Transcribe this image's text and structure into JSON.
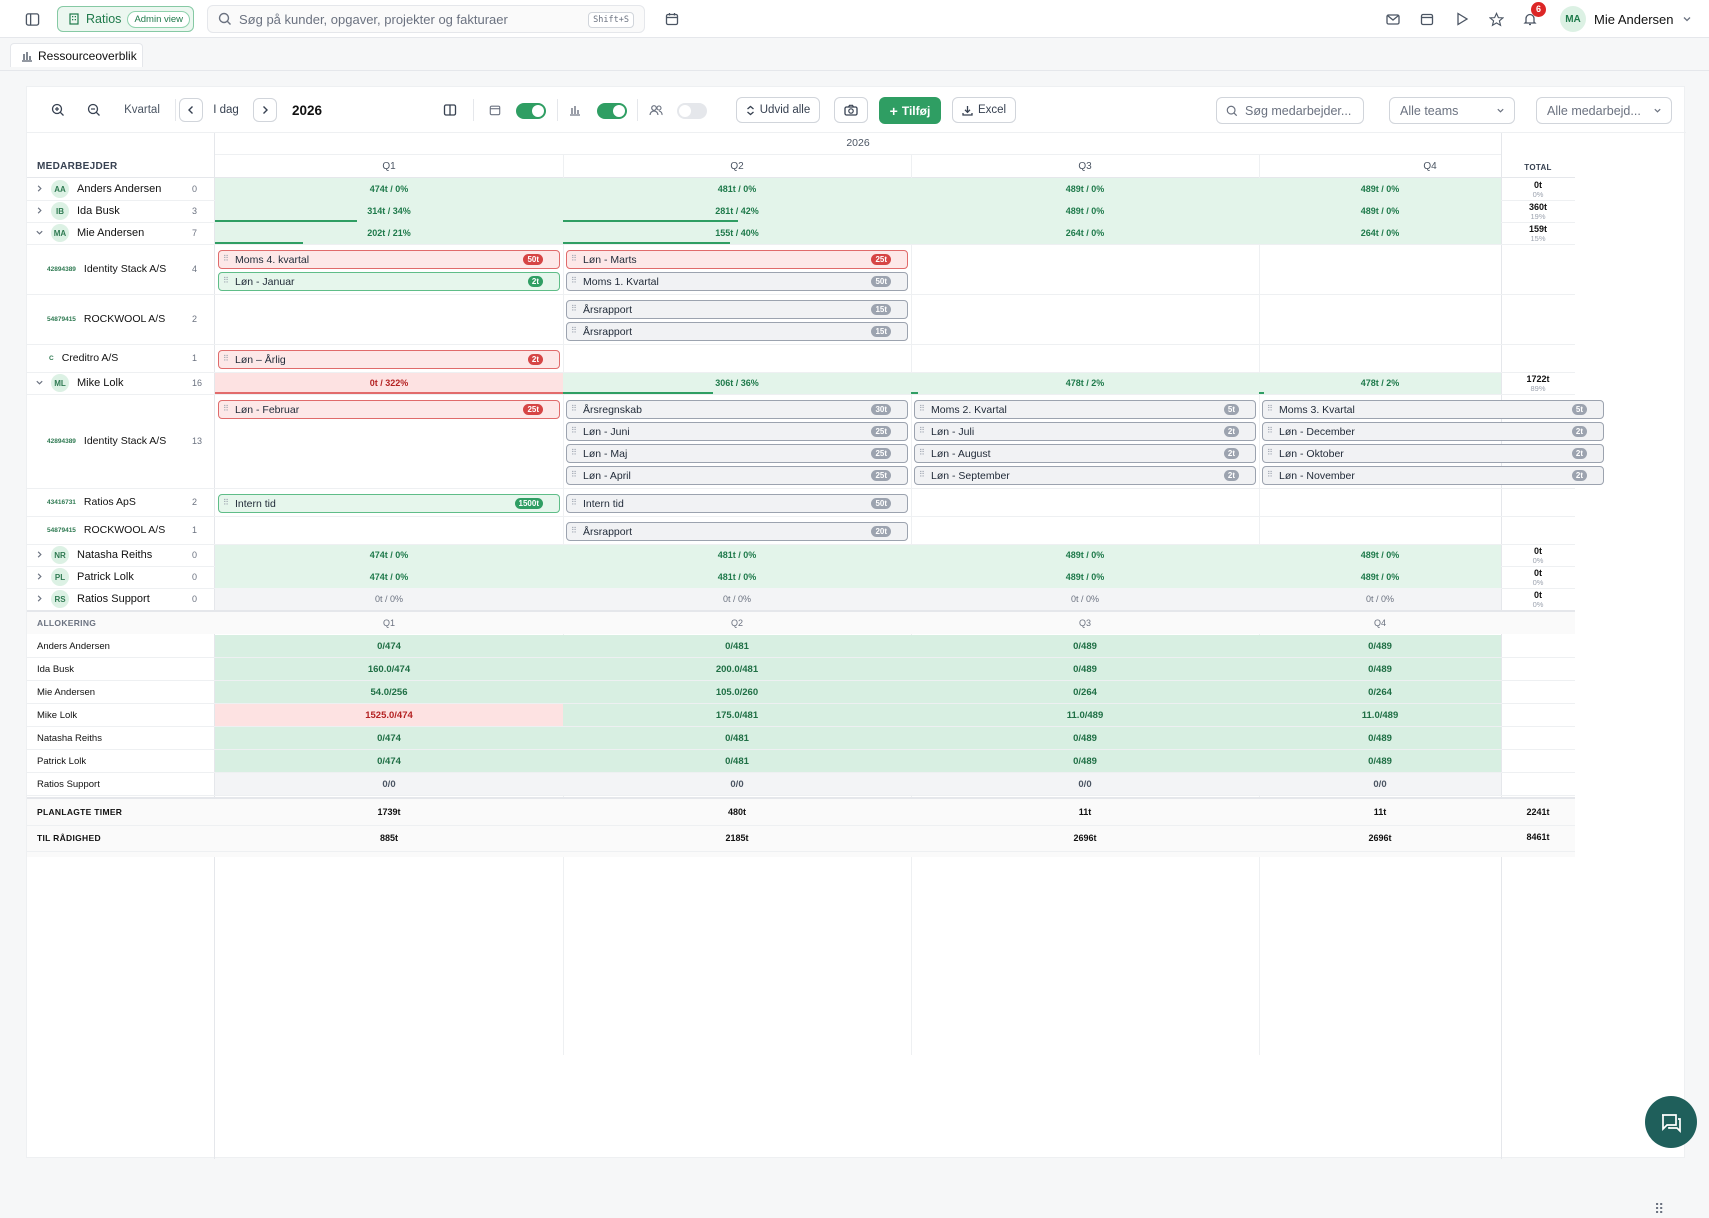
{
  "app": {
    "name": "Ratios",
    "admin_label": "Admin view"
  },
  "search": {
    "placeholder": "Søg på kunder, opgaver, projekter og fakturaer",
    "shortcut": "Shift+S"
  },
  "notifications": {
    "count": "6"
  },
  "user": {
    "initials": "MA",
    "name": "Mie Andersen"
  },
  "tab": {
    "label": "Ressourceoverblik"
  },
  "toolbar": {
    "period": "Kvartal",
    "today": "I dag",
    "year": "2026",
    "expand_all": "Udvid alle",
    "add": "Tilføj",
    "excel": "Excel",
    "search_placeholder": "Søg medarbejder...",
    "team_select": "Alle teams",
    "employee_select": "Alle medarbejd..."
  },
  "grid": {
    "year": "2026",
    "employee_header": "MEDARBEJDER",
    "total_header": "TOTAL",
    "quarters": [
      "Q1",
      "Q2",
      "Q3",
      "Q4"
    ]
  },
  "employees": [
    {
      "initials": "AA",
      "name": "Anders Andersen",
      "count": "0",
      "cells": [
        "474t / 0%",
        "481t / 0%",
        "489t / 0%",
        "489t / 0%"
      ],
      "total": "0t",
      "total_pct": "0%"
    },
    {
      "initials": "IB",
      "name": "Ida Busk",
      "count": "3",
      "cells": [
        "314t / 34%",
        "281t / 42%",
        "489t / 0%",
        "489t / 0%"
      ],
      "total": "360t",
      "total_pct": "19%"
    },
    {
      "initials": "MA",
      "name": "Mie Andersen",
      "count": "7",
      "cells": [
        "202t / 21%",
        "155t / 40%",
        "264t / 0%",
        "264t / 0%"
      ],
      "total": "159t",
      "total_pct": "15%"
    },
    {
      "initials": "ML",
      "name": "Mike Lolk",
      "count": "16",
      "cells": [
        "0t / 322%",
        "306t / 36%",
        "478t / 2%",
        "478t / 2%"
      ],
      "total": "1722t",
      "total_pct": "89%"
    },
    {
      "initials": "NR",
      "name": "Natasha Reiths",
      "count": "0",
      "cells": [
        "474t / 0%",
        "481t / 0%",
        "489t / 0%",
        "489t / 0%"
      ],
      "total": "0t",
      "total_pct": "0%"
    },
    {
      "initials": "PL",
      "name": "Patrick Lolk",
      "count": "0",
      "cells": [
        "474t / 0%",
        "481t / 0%",
        "489t / 0%",
        "489t / 0%"
      ],
      "total": "0t",
      "total_pct": "0%"
    },
    {
      "initials": "RS",
      "name": "Ratios Support",
      "count": "0",
      "cells": [
        "0t / 0%",
        "0t / 0%",
        "0t / 0%",
        "0t / 0%"
      ],
      "total": "0t",
      "total_pct": "0%"
    }
  ],
  "clients": [
    {
      "code": "42894389",
      "name": "Identity Stack A/S",
      "count": "4"
    },
    {
      "code": "54879415",
      "name": "ROCKWOOL A/S",
      "count": "2"
    },
    {
      "code": "C",
      "name": "Creditro A/S",
      "count": "1"
    },
    {
      "code": "42894389",
      "name": "Identity Stack A/S",
      "count": "13"
    },
    {
      "code": "43416731",
      "name": "Ratios ApS",
      "count": "2"
    },
    {
      "code": "54879415",
      "name": "ROCKWOOL A/S",
      "count": "1"
    }
  ],
  "tasks": [
    {
      "label": "Moms 4. kvartal",
      "hours": "50t"
    },
    {
      "label": "Løn - Januar",
      "hours": "2t"
    },
    {
      "label": "Løn - Marts",
      "hours": "25t"
    },
    {
      "label": "Moms 1. Kvartal",
      "hours": "50t"
    },
    {
      "label": "Årsrapport",
      "hours": "15t"
    },
    {
      "label": "Årsrapport",
      "hours": "15t"
    },
    {
      "label": "Løn – Årlig",
      "hours": "2t"
    },
    {
      "label": "Løn - Februar",
      "hours": "25t"
    },
    {
      "label": "Årsregnskab",
      "hours": "30t"
    },
    {
      "label": "Løn - Juni",
      "hours": "25t"
    },
    {
      "label": "Løn - Maj",
      "hours": "25t"
    },
    {
      "label": "Løn - April",
      "hours": "25t"
    },
    {
      "label": "Moms 2. Kvartal",
      "hours": "5t"
    },
    {
      "label": "Løn - Juli",
      "hours": "2t"
    },
    {
      "label": "Løn - August",
      "hours": "2t"
    },
    {
      "label": "Løn - September",
      "hours": "2t"
    },
    {
      "label": "Moms 3. Kvartal",
      "hours": "5t"
    },
    {
      "label": "Løn - December",
      "hours": "2t"
    },
    {
      "label": "Løn - Oktober",
      "hours": "2t"
    },
    {
      "label": "Løn - November",
      "hours": "2t"
    },
    {
      "label": "Intern tid",
      "hours": "1500t"
    },
    {
      "label": "Intern tid",
      "hours": "50t"
    },
    {
      "label": "Årsrapport",
      "hours": "20t"
    }
  ],
  "allocation": {
    "header": "ALLOKERING",
    "rows": [
      {
        "name": "Anders Andersen",
        "cells": [
          "0/474",
          "0/481",
          "0/489",
          "0/489"
        ]
      },
      {
        "name": "Ida Busk",
        "cells": [
          "160.0/474",
          "200.0/481",
          "0/489",
          "0/489"
        ]
      },
      {
        "name": "Mie Andersen",
        "cells": [
          "54.0/256",
          "105.0/260",
          "0/264",
          "0/264"
        ]
      },
      {
        "name": "Mike Lolk",
        "cells": [
          "1525.0/474",
          "175.0/481",
          "11.0/489",
          "11.0/489"
        ]
      },
      {
        "name": "Natasha Reiths",
        "cells": [
          "0/474",
          "0/481",
          "0/489",
          "0/489"
        ]
      },
      {
        "name": "Patrick Lolk",
        "cells": [
          "0/474",
          "0/481",
          "0/489",
          "0/489"
        ]
      },
      {
        "name": "Ratios Support",
        "cells": [
          "0/0",
          "0/0",
          "0/0",
          "0/0"
        ]
      }
    ]
  },
  "summary": {
    "planned_label": "PLANLAGTE TIMER",
    "planned": [
      "1739t",
      "480t",
      "11t",
      "11t"
    ],
    "planned_total": "2241t",
    "available_label": "TIL RÅDIGHED",
    "available": [
      "885t",
      "2185t",
      "2696t",
      "2696t"
    ],
    "available_total": "8461t"
  },
  "colors": {
    "accent": "#2f9e63",
    "over": "#fde2e2",
    "ok": "#d8efe2"
  }
}
